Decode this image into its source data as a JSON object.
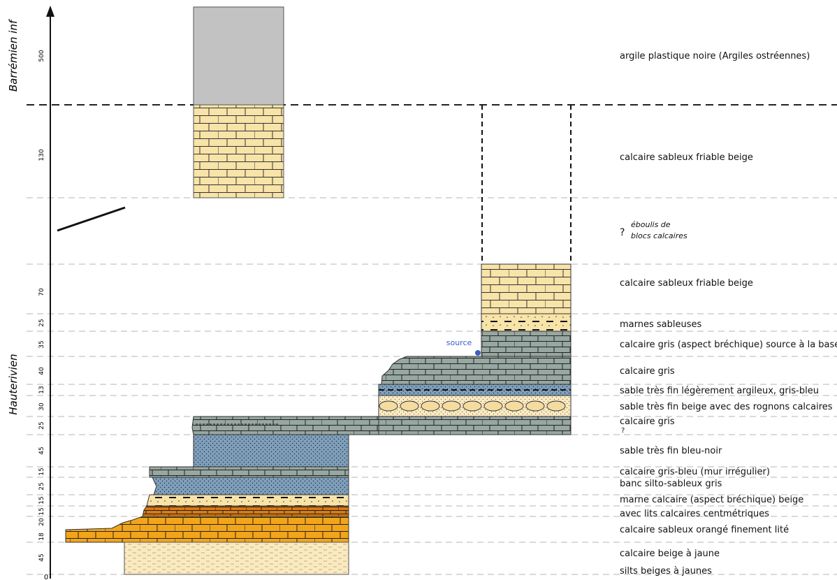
{
  "eras": [
    {
      "id": "barremien",
      "label": "Barrémien inf"
    },
    {
      "id": "hauterivien",
      "label": "Hauterivien"
    }
  ],
  "axis": {
    "origin_label": "0"
  },
  "thickness_labels": [
    "500",
    "130",
    "70",
    "25",
    "35",
    "40",
    "13",
    "30",
    "25",
    "45",
    "15",
    "25",
    "15",
    "15",
    "20",
    "18",
    "45"
  ],
  "descriptions": [
    "argile plastique noire (Argiles ostréennes)",
    "calcaire sableux friable beige",
    "éboulis de",
    "blocs calcaires",
    "calcaire sableux friable beige",
    "marnes sableuses",
    "calcaire gris (aspect bréchique) source à la base",
    "calcaire gris",
    "sable très fin légèrement argileux, gris-bleu",
    "sable très fin beige avec des rognons calcaires",
    "calcaire gris",
    "sable très fin bleu-noir",
    "calcaire gris-bleu (mur irrégulier)",
    "banc silto-sableux gris",
    "marne calcaire (aspect bréchique) beige",
    "avec lits calcaires centmétriques",
    "calcaire sableux orangé finement lité",
    "calcaire beige à jaune",
    "silts beiges à jaunes"
  ],
  "question_marks": [
    "?",
    "?"
  ],
  "source_label": "source",
  "colors": {
    "clay": "#c2c2c2",
    "beige_limestone": "#f8e3a8",
    "grey_limestone": "#97a7a2",
    "blue_sand": "#7f9fbb",
    "orange_limestone": "#f2a51a",
    "dark_orange": "#d97a12",
    "light_beige": "#faeac2",
    "source_dot": "#3b5fc2"
  }
}
